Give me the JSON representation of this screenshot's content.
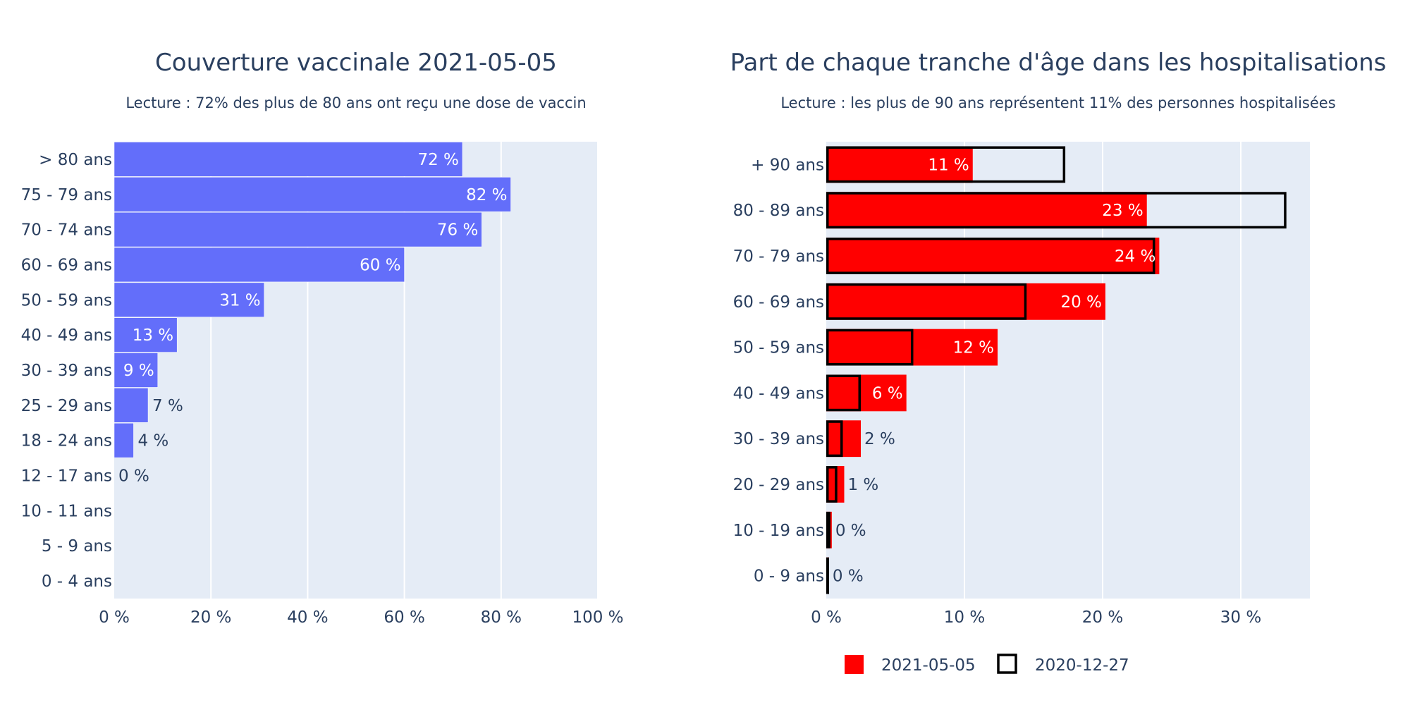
{
  "chart_data": [
    {
      "type": "bar",
      "orientation": "horizontal",
      "title": "Couverture vaccinale 2021-05-05",
      "subtitle": "Lecture : 72% des plus de 80 ans ont reçu une dose de vaccin",
      "categories": [
        "> 80 ans",
        "75 - 79 ans",
        "70 - 74 ans",
        "60 - 69 ans",
        "50 - 59 ans",
        "40 - 49 ans",
        "30 - 39 ans",
        "25 - 29 ans",
        "18 - 24 ans",
        "12 - 17 ans",
        "10 - 11 ans",
        "5 - 9 ans",
        "0 - 4 ans"
      ],
      "values": [
        72,
        82,
        76,
        60,
        31,
        13,
        9,
        7,
        4,
        0,
        null,
        null,
        null
      ],
      "labels": [
        "72 %",
        "82 %",
        "76 %",
        "60 %",
        "31 %",
        "13 %",
        "9 %",
        "7 %",
        "4 %",
        "0 %",
        "",
        "",
        ""
      ],
      "xlim": [
        0,
        100
      ],
      "xticks": [
        0,
        20,
        40,
        60,
        80,
        100
      ],
      "xtick_labels": [
        "0 %",
        "20 %",
        "40 %",
        "60 %",
        "80 %",
        "100 %"
      ],
      "bar_color": "#636efa",
      "grid": true
    },
    {
      "type": "bar",
      "orientation": "horizontal",
      "title": "Part de chaque tranche d'âge dans les hospitalisations",
      "subtitle": "Lecture : les plus de 90 ans représentent 11% des personnes hospitalisées",
      "categories": [
        "+ 90 ans",
        "80 - 89 ans",
        "70 - 79 ans",
        "60 - 69 ans",
        "50 - 59 ans",
        "40 - 49 ans",
        "30 - 39 ans",
        "20 - 29 ans",
        "10 - 19 ans",
        "0 - 9 ans"
      ],
      "series": [
        {
          "name": "2021-05-05",
          "style": "filled",
          "color": "#ff0000",
          "values": [
            10.6,
            23.2,
            24.1,
            20.2,
            12.4,
            5.8,
            2.5,
            1.3,
            0.4,
            0.2
          ],
          "labels": [
            "11 %",
            "23 %",
            "24 %",
            "20 %",
            "12 %",
            "6 %",
            "2 %",
            "1 %",
            "0 %",
            "0 %"
          ]
        },
        {
          "name": "2020-12-27",
          "style": "outline",
          "color": "#000000",
          "values": [
            17.3,
            33.3,
            23.8,
            14.5,
            6.3,
            2.5,
            1.2,
            0.8,
            0.3,
            0.1
          ]
        }
      ],
      "xlim": [
        0,
        35
      ],
      "xticks": [
        0,
        10,
        20,
        30
      ],
      "xtick_labels": [
        "0 %",
        "10 %",
        "20 %",
        "30 %"
      ],
      "legend_position": "bottom",
      "grid": true
    }
  ]
}
